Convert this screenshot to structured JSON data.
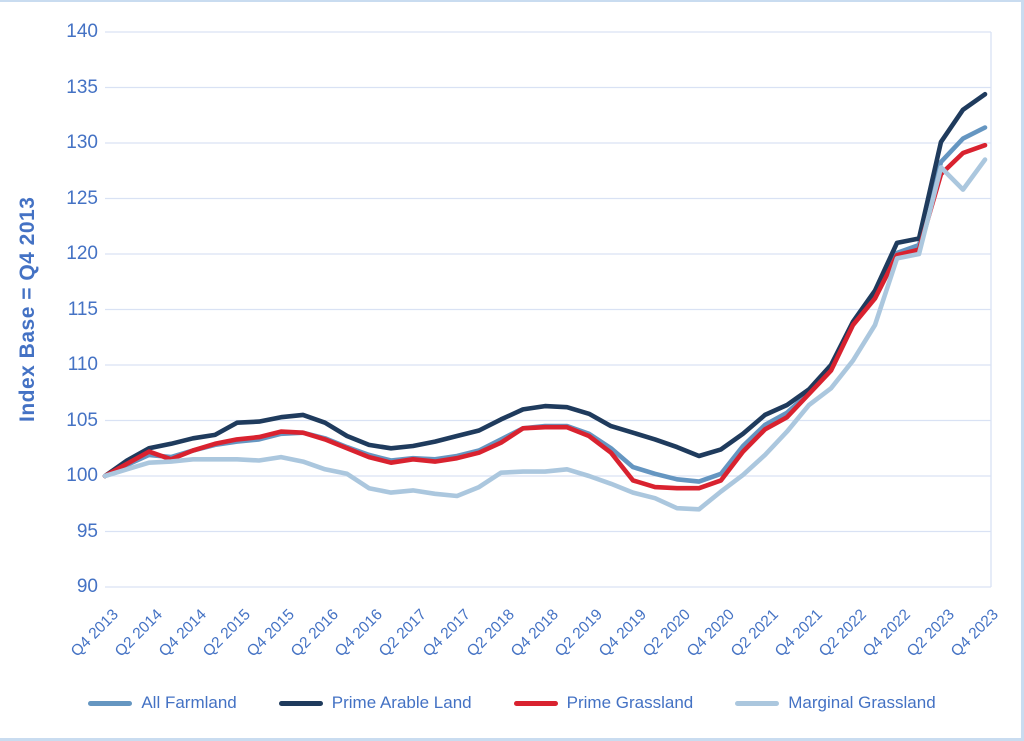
{
  "page": {
    "background": "#FFFFFF",
    "border_color": "#C9DCF0",
    "axis_text_color": "#4472C4",
    "gridline_color": "#D9E2F4"
  },
  "chart_data": {
    "type": "line",
    "title": "",
    "xlabel": "",
    "ylabel": "Index Base = Q4 2013",
    "ylim": [
      90,
      140
    ],
    "yticks": [
      140,
      135,
      130,
      125,
      120,
      115,
      110,
      105,
      100,
      95,
      90
    ],
    "grid": true,
    "legend_position": "bottom",
    "x_quarters": [
      "Q4 2013",
      "Q1 2014",
      "Q2 2014",
      "Q3 2014",
      "Q4 2014",
      "Q1 2015",
      "Q2 2015",
      "Q3 2015",
      "Q4 2015",
      "Q1 2016",
      "Q2 2016",
      "Q3 2016",
      "Q4 2016",
      "Q1 2017",
      "Q2 2017",
      "Q3 2017",
      "Q4 2017",
      "Q1 2018",
      "Q2 2018",
      "Q3 2018",
      "Q4 2018",
      "Q1 2019",
      "Q2 2019",
      "Q3 2019",
      "Q4 2019",
      "Q1 2020",
      "Q2 2020",
      "Q3 2020",
      "Q4 2020",
      "Q1 2021",
      "Q2 2021",
      "Q3 2021",
      "Q4 2021",
      "Q1 2022",
      "Q2 2022",
      "Q3 2022",
      "Q4 2022",
      "Q1 2023",
      "Q2 2023",
      "Q3 2023",
      "Q4 2023"
    ],
    "xtick_labels": [
      "Q4 2013",
      "Q2 2014",
      "Q4 2014",
      "Q2 2015",
      "Q4 2015",
      "Q2 2016",
      "Q4 2016",
      "Q2 2017",
      "Q4 2017",
      "Q2 2018",
      "Q4 2018",
      "Q2 2019",
      "Q4 2019",
      "Q2 2020",
      "Q4 2020",
      "Q2 2021",
      "Q4 2021",
      "Q2 2022",
      "Q4 2022",
      "Q2 2023",
      "Q4 2023"
    ],
    "xtick_every": 2,
    "series": [
      {
        "name": "All Farmland",
        "color": "#6596C1",
        "values": [
          100.0,
          101.0,
          101.9,
          101.7,
          102.3,
          102.8,
          103.1,
          103.3,
          103.8,
          103.9,
          103.4,
          102.6,
          101.9,
          101.4,
          101.6,
          101.5,
          101.8,
          102.3,
          103.3,
          104.3,
          104.5,
          104.5,
          103.8,
          102.5,
          100.8,
          100.2,
          99.7,
          99.5,
          100.2,
          102.7,
          104.6,
          105.7,
          107.5,
          109.7,
          113.7,
          116.2,
          120.1,
          120.8,
          128.3,
          130.4,
          131.4
        ]
      },
      {
        "name": "Prime Arable Land",
        "color": "#1F3B5D",
        "values": [
          100.0,
          101.4,
          102.5,
          102.9,
          103.4,
          103.7,
          104.8,
          104.9,
          105.3,
          105.5,
          104.8,
          103.6,
          102.8,
          102.5,
          102.7,
          103.1,
          103.6,
          104.1,
          105.1,
          106.0,
          106.3,
          106.2,
          105.6,
          104.5,
          103.9,
          103.3,
          102.6,
          101.8,
          102.4,
          103.8,
          105.5,
          106.4,
          107.8,
          110.0,
          113.9,
          116.7,
          121.0,
          121.4,
          130.1,
          133.0,
          134.4
        ]
      },
      {
        "name": "Prime Grassland",
        "color": "#D9222F",
        "values": [
          100.0,
          101.1,
          102.2,
          101.5,
          102.3,
          102.9,
          103.3,
          103.5,
          104.0,
          103.9,
          103.3,
          102.5,
          101.7,
          101.2,
          101.5,
          101.3,
          101.6,
          102.1,
          103.0,
          104.3,
          104.4,
          104.4,
          103.6,
          102.1,
          99.6,
          99.0,
          98.9,
          98.9,
          99.6,
          102.2,
          104.2,
          105.3,
          107.4,
          109.5,
          113.6,
          116.0,
          119.9,
          120.4,
          127.2,
          129.1,
          129.8
        ]
      },
      {
        "name": "Marginal Grassland",
        "color": "#ABC7DE",
        "values": [
          100.0,
          100.6,
          101.2,
          101.3,
          101.5,
          101.5,
          101.5,
          101.4,
          101.7,
          101.3,
          100.6,
          100.2,
          98.9,
          98.5,
          98.7,
          98.4,
          98.2,
          99.0,
          100.3,
          100.4,
          100.4,
          100.6,
          100.0,
          99.3,
          98.5,
          98.0,
          97.1,
          97.0,
          98.6,
          100.1,
          101.9,
          104.0,
          106.4,
          107.9,
          110.4,
          113.6,
          119.6,
          120.0,
          127.8,
          125.8,
          128.5
        ]
      }
    ]
  }
}
